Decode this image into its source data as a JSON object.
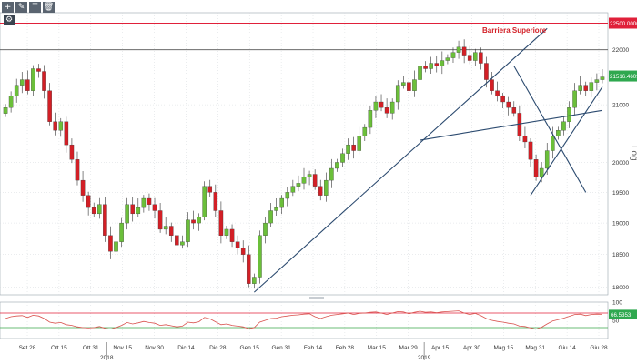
{
  "toolbar": {
    "crosshair_icon": "crosshair-icon",
    "draw_icon": "pencil-icon",
    "text_icon": "text-icon",
    "delete_icon": "trash-icon",
    "settings_icon": "gear-icon"
  },
  "colors": {
    "up_candle": "#6bbf3a",
    "down_candle": "#d31f26",
    "trendline": "#2b4a6f",
    "resistance": "#e0203a",
    "price_tag": "#2fa84f",
    "rsi_line": "#d9534f"
  },
  "chart_data": {
    "type": "candlestick",
    "price_scale": "log",
    "y_axis_label": "Log",
    "y_ticks": [
      18000,
      18500,
      19000,
      19500,
      20000,
      21000,
      22000
    ],
    "ylim": [
      17880,
      22700
    ],
    "x_labels": [
      "Set 28",
      "Ott 15",
      "Ott 31",
      "Nov 15",
      "Nov 30",
      "Dic 14",
      "Dic 28",
      "Gen 15",
      "Gen 31",
      "Feb 14",
      "Feb 28",
      "Mar 15",
      "Mar 29",
      "Apr 15",
      "Apr 30",
      "Mag 15",
      "Mag 31",
      "Giu 14",
      "Giu 28"
    ],
    "year_labels": [
      {
        "label": "2018",
        "after": "Ott 31"
      },
      {
        "label": "2019",
        "after": "Mar 29"
      }
    ],
    "closes": [
      20950,
      21150,
      21350,
      21450,
      21250,
      21650,
      21600,
      21250,
      20700,
      20550,
      20700,
      20300,
      20050,
      19700,
      19450,
      19250,
      19150,
      19300,
      18800,
      18550,
      18700,
      19000,
      19300,
      19150,
      19250,
      19400,
      19300,
      19200,
      18900,
      18950,
      18800,
      18650,
      18700,
      19050,
      19000,
      19100,
      19600,
      19500,
      19200,
      18800,
      18900,
      18700,
      18600,
      18500,
      18050,
      18150,
      18800,
      19000,
      19200,
      19250,
      19400,
      19500,
      19600,
      19650,
      19750,
      19800,
      19600,
      19450,
      19700,
      19900,
      20000,
      20150,
      20300,
      20200,
      20450,
      20600,
      20900,
      21050,
      20950,
      20850,
      21050,
      21350,
      21400,
      21250,
      21450,
      21700,
      21650,
      21750,
      21700,
      21800,
      21850,
      21950,
      22050,
      21900,
      21800,
      21950,
      21750,
      21450,
      21250,
      21150,
      21050,
      20950,
      20850,
      20450,
      20350,
      20050,
      19750,
      19900,
      20200,
      20450,
      20550,
      20700,
      20950,
      21250,
      21350,
      21250,
      21400,
      21450,
      21500
    ],
    "resistance_level": 22500,
    "resistance_label": "22500.0000",
    "resistance_name": "Barriera Superiore",
    "horizontal_level": 22000,
    "last_price": 21516.4609,
    "last_price_label": "21516.4609",
    "trendlines": [
      {
        "name": "main-uptrend",
        "from": {
          "i": 45,
          "v": 17920
        },
        "to": {
          "i": 98,
          "v": 22400
        }
      },
      {
        "name": "neckline",
        "from": {
          "i": 75,
          "v": 20380
        },
        "to": {
          "i": 108,
          "v": 20900
        }
      },
      {
        "name": "apr-downtrend",
        "from": {
          "i": 92,
          "v": 21700
        },
        "to": {
          "i": 105,
          "v": 19500
        }
      },
      {
        "name": "short-uptrend",
        "from": {
          "i": 95,
          "v": 19450
        },
        "to": {
          "i": 108,
          "v": 21320
        }
      }
    ],
    "rsi": {
      "levels": [
        70,
        30
      ],
      "ticks": [
        50,
        100
      ],
      "last_value": 66.5353,
      "last_label": "66.5353",
      "values": [
        55,
        60,
        62,
        63,
        58,
        64,
        62,
        55,
        45,
        42,
        44,
        38,
        36,
        32,
        30,
        29,
        30,
        33,
        28,
        26,
        30,
        36,
        44,
        40,
        43,
        47,
        44,
        42,
        36,
        38,
        35,
        32,
        34,
        45,
        43,
        46,
        58,
        54,
        46,
        38,
        40,
        36,
        34,
        32,
        27,
        30,
        45,
        50,
        55,
        56,
        60,
        62,
        64,
        65,
        67,
        68,
        60,
        55,
        60,
        64,
        66,
        68,
        70,
        66,
        69,
        70,
        72,
        73,
        70,
        66,
        70,
        74,
        73,
        68,
        72,
        75,
        72,
        73,
        71,
        73,
        74,
        75,
        76,
        70,
        66,
        69,
        63,
        55,
        50,
        47,
        45,
        42,
        40,
        34,
        33,
        29,
        26,
        31,
        40,
        48,
        52,
        56,
        61,
        66,
        67,
        63,
        66,
        67,
        66.5
      ]
    }
  }
}
